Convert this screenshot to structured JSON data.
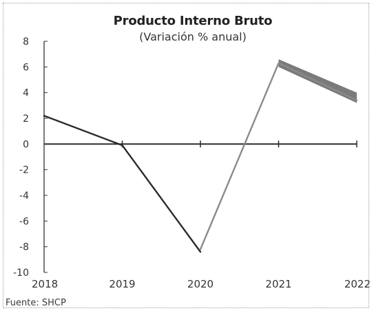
{
  "chart_data": {
    "type": "line",
    "title": "Producto Interno Bruto",
    "subtitle": "(Variación % anual)",
    "source": "Fuente: SHCP",
    "categories": [
      "2018",
      "2019",
      "2020",
      "2021",
      "2022"
    ],
    "ylim": [
      -10,
      8
    ],
    "yticks": [
      8,
      6,
      4,
      2,
      0,
      -2,
      -4,
      -6,
      -8,
      -10
    ],
    "series": [
      {
        "values": [
          2.2,
          -0.1,
          -8.4,
          null,
          null
        ],
        "color": "#2a2a2a"
      },
      {
        "values": [
          null,
          null,
          -8.2,
          6.3,
          3.4
        ],
        "color": "#8a8a8a"
      }
    ],
    "range_band": {
      "categories": [
        "2021",
        "2022"
      ],
      "lower": [
        6.0,
        3.2
      ],
      "upper": [
        6.6,
        4.0
      ],
      "color": "#6b6b6b"
    },
    "grid": false
  }
}
